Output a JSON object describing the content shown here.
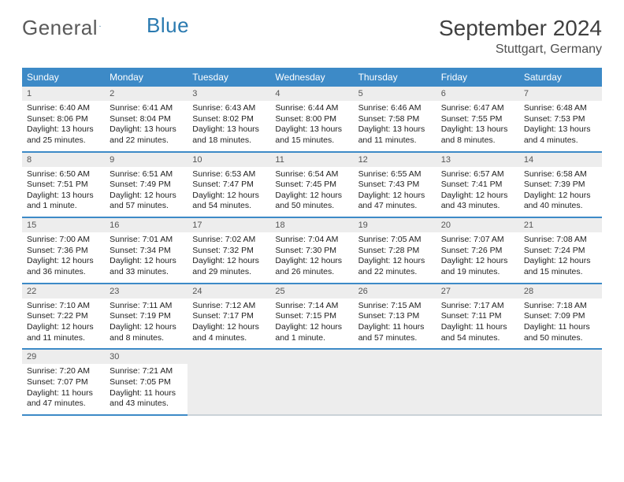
{
  "logo": {
    "text1": "General",
    "text2": "Blue"
  },
  "title": "September 2024",
  "location": "Stuttgart, Germany",
  "colors": {
    "header_bg": "#3d8ac7",
    "header_fg": "#ffffff",
    "daynum_bg": "#ededed",
    "border": "#3d8ac7"
  },
  "weekdays": [
    "Sunday",
    "Monday",
    "Tuesday",
    "Wednesday",
    "Thursday",
    "Friday",
    "Saturday"
  ],
  "days": [
    {
      "n": 1,
      "sunrise": "6:40 AM",
      "sunset": "8:06 PM",
      "daylight": "13 hours and 25 minutes."
    },
    {
      "n": 2,
      "sunrise": "6:41 AM",
      "sunset": "8:04 PM",
      "daylight": "13 hours and 22 minutes."
    },
    {
      "n": 3,
      "sunrise": "6:43 AM",
      "sunset": "8:02 PM",
      "daylight": "13 hours and 18 minutes."
    },
    {
      "n": 4,
      "sunrise": "6:44 AM",
      "sunset": "8:00 PM",
      "daylight": "13 hours and 15 minutes."
    },
    {
      "n": 5,
      "sunrise": "6:46 AM",
      "sunset": "7:58 PM",
      "daylight": "13 hours and 11 minutes."
    },
    {
      "n": 6,
      "sunrise": "6:47 AM",
      "sunset": "7:55 PM",
      "daylight": "13 hours and 8 minutes."
    },
    {
      "n": 7,
      "sunrise": "6:48 AM",
      "sunset": "7:53 PM",
      "daylight": "13 hours and 4 minutes."
    },
    {
      "n": 8,
      "sunrise": "6:50 AM",
      "sunset": "7:51 PM",
      "daylight": "13 hours and 1 minute."
    },
    {
      "n": 9,
      "sunrise": "6:51 AM",
      "sunset": "7:49 PM",
      "daylight": "12 hours and 57 minutes."
    },
    {
      "n": 10,
      "sunrise": "6:53 AM",
      "sunset": "7:47 PM",
      "daylight": "12 hours and 54 minutes."
    },
    {
      "n": 11,
      "sunrise": "6:54 AM",
      "sunset": "7:45 PM",
      "daylight": "12 hours and 50 minutes."
    },
    {
      "n": 12,
      "sunrise": "6:55 AM",
      "sunset": "7:43 PM",
      "daylight": "12 hours and 47 minutes."
    },
    {
      "n": 13,
      "sunrise": "6:57 AM",
      "sunset": "7:41 PM",
      "daylight": "12 hours and 43 minutes."
    },
    {
      "n": 14,
      "sunrise": "6:58 AM",
      "sunset": "7:39 PM",
      "daylight": "12 hours and 40 minutes."
    },
    {
      "n": 15,
      "sunrise": "7:00 AM",
      "sunset": "7:36 PM",
      "daylight": "12 hours and 36 minutes."
    },
    {
      "n": 16,
      "sunrise": "7:01 AM",
      "sunset": "7:34 PM",
      "daylight": "12 hours and 33 minutes."
    },
    {
      "n": 17,
      "sunrise": "7:02 AM",
      "sunset": "7:32 PM",
      "daylight": "12 hours and 29 minutes."
    },
    {
      "n": 18,
      "sunrise": "7:04 AM",
      "sunset": "7:30 PM",
      "daylight": "12 hours and 26 minutes."
    },
    {
      "n": 19,
      "sunrise": "7:05 AM",
      "sunset": "7:28 PM",
      "daylight": "12 hours and 22 minutes."
    },
    {
      "n": 20,
      "sunrise": "7:07 AM",
      "sunset": "7:26 PM",
      "daylight": "12 hours and 19 minutes."
    },
    {
      "n": 21,
      "sunrise": "7:08 AM",
      "sunset": "7:24 PM",
      "daylight": "12 hours and 15 minutes."
    },
    {
      "n": 22,
      "sunrise": "7:10 AM",
      "sunset": "7:22 PM",
      "daylight": "12 hours and 11 minutes."
    },
    {
      "n": 23,
      "sunrise": "7:11 AM",
      "sunset": "7:19 PM",
      "daylight": "12 hours and 8 minutes."
    },
    {
      "n": 24,
      "sunrise": "7:12 AM",
      "sunset": "7:17 PM",
      "daylight": "12 hours and 4 minutes."
    },
    {
      "n": 25,
      "sunrise": "7:14 AM",
      "sunset": "7:15 PM",
      "daylight": "12 hours and 1 minute."
    },
    {
      "n": 26,
      "sunrise": "7:15 AM",
      "sunset": "7:13 PM",
      "daylight": "11 hours and 57 minutes."
    },
    {
      "n": 27,
      "sunrise": "7:17 AM",
      "sunset": "7:11 PM",
      "daylight": "11 hours and 54 minutes."
    },
    {
      "n": 28,
      "sunrise": "7:18 AM",
      "sunset": "7:09 PM",
      "daylight": "11 hours and 50 minutes."
    },
    {
      "n": 29,
      "sunrise": "7:20 AM",
      "sunset": "7:07 PM",
      "daylight": "11 hours and 47 minutes."
    },
    {
      "n": 30,
      "sunrise": "7:21 AM",
      "sunset": "7:05 PM",
      "daylight": "11 hours and 43 minutes."
    }
  ],
  "labels": {
    "sunrise": "Sunrise:",
    "sunset": "Sunset:",
    "daylight": "Daylight:"
  },
  "start_weekday": 0,
  "trailing_blanks": 5
}
